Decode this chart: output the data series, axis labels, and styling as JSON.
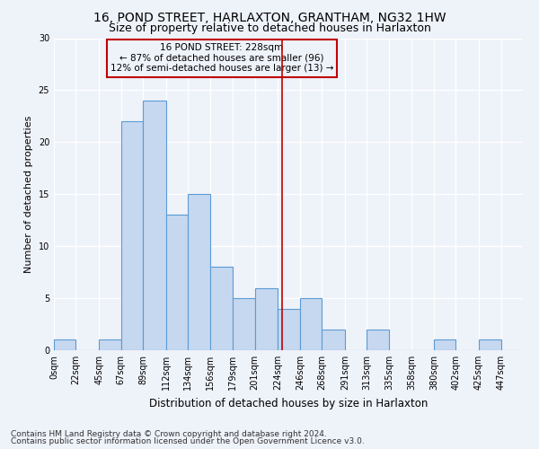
{
  "title1": "16, POND STREET, HARLAXTON, GRANTHAM, NG32 1HW",
  "title2": "Size of property relative to detached houses in Harlaxton",
  "xlabel": "Distribution of detached houses by size in Harlaxton",
  "ylabel": "Number of detached properties",
  "footnote1": "Contains HM Land Registry data © Crown copyright and database right 2024.",
  "footnote2": "Contains public sector information licensed under the Open Government Licence v3.0.",
  "bin_labels": [
    "0sqm",
    "22sqm",
    "45sqm",
    "67sqm",
    "89sqm",
    "112sqm",
    "134sqm",
    "156sqm",
    "179sqm",
    "201sqm",
    "224sqm",
    "246sqm",
    "268sqm",
    "291sqm",
    "313sqm",
    "335sqm",
    "358sqm",
    "380sqm",
    "402sqm",
    "425sqm",
    "447sqm"
  ],
  "bar_heights": [
    1,
    0,
    1,
    22,
    24,
    13,
    15,
    8,
    5,
    6,
    4,
    5,
    2,
    0,
    2,
    0,
    0,
    1,
    0,
    1,
    0
  ],
  "bar_color": "#c5d8f0",
  "bar_edge_color": "#5b9bd5",
  "annotation_title": "16 POND STREET: 228sqm",
  "annotation_line1": "← 87% of detached houses are smaller (96)",
  "annotation_line2": "12% of semi-detached houses are larger (13) →",
  "vline_color": "#c00000",
  "annotation_box_edge_color": "#c00000",
  "ylim": [
    0,
    30
  ],
  "yticks": [
    0,
    5,
    10,
    15,
    20,
    25,
    30
  ],
  "bin_edges": [
    0,
    22,
    45,
    67,
    89,
    112,
    134,
    156,
    179,
    201,
    224,
    246,
    268,
    291,
    313,
    335,
    358,
    380,
    402,
    425,
    447
  ],
  "vline_x": 228,
  "background_color": "#eef2f9",
  "grid_color": "#ffffff",
  "title1_fontsize": 10,
  "title2_fontsize": 9,
  "ylabel_fontsize": 8,
  "xlabel_fontsize": 8.5,
  "footnote_fontsize": 6.5,
  "tick_fontsize": 7,
  "annot_fontsize": 7.5
}
